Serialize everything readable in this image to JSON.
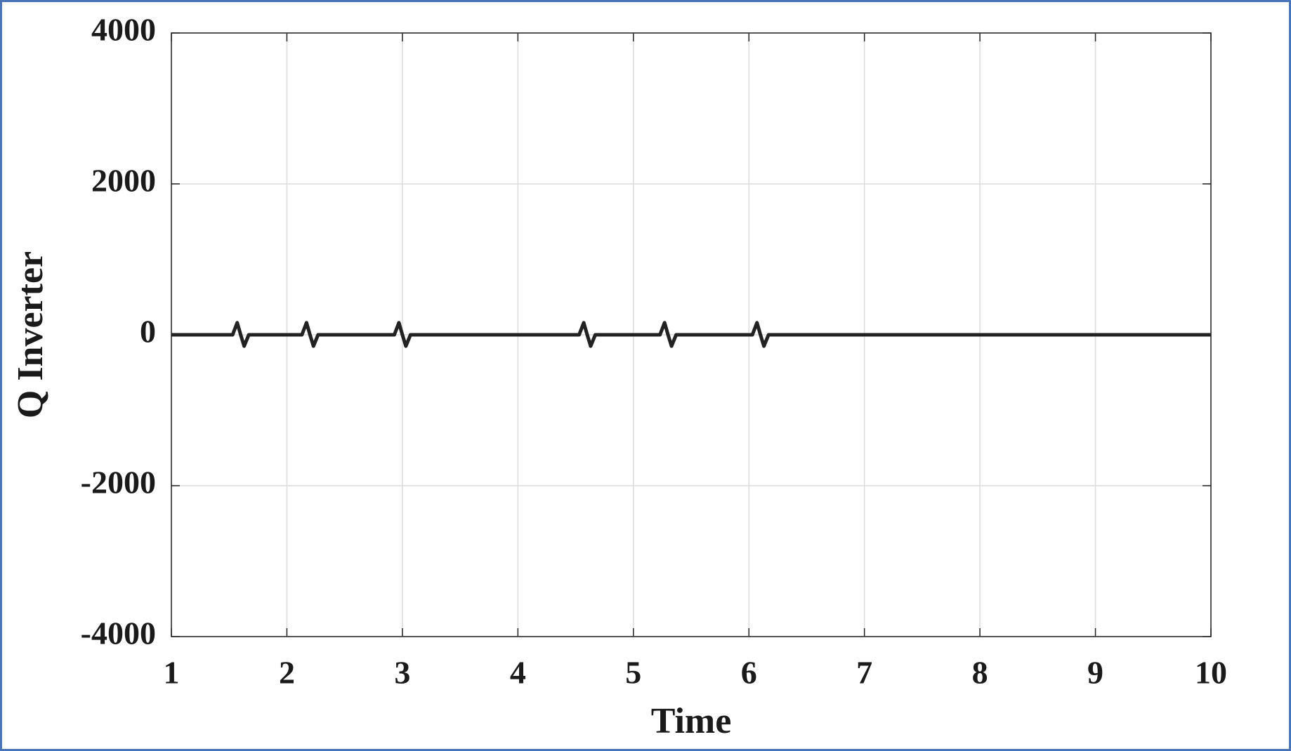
{
  "chart_data": {
    "type": "line",
    "xlabel": "Time",
    "ylabel": "Q Inverter",
    "x": [
      1,
      1.53,
      1.57,
      1.6,
      1.63,
      1.67,
      2.13,
      2.17,
      2.2,
      2.23,
      2.27,
      2.93,
      2.97,
      3.0,
      3.03,
      3.07,
      4.53,
      4.57,
      4.6,
      4.63,
      4.67,
      5.23,
      5.27,
      5.3,
      5.33,
      5.37,
      6.03,
      6.07,
      6.1,
      6.13,
      6.17,
      10
    ],
    "series": [
      {
        "color": "#222222",
        "values": [
          0,
          0,
          160,
          0,
          -150,
          0,
          0,
          160,
          0,
          -150,
          0,
          0,
          160,
          0,
          -150,
          0,
          0,
          160,
          0,
          -150,
          0,
          0,
          160,
          0,
          -150,
          0,
          0,
          160,
          0,
          -150,
          0,
          0
        ]
      }
    ],
    "xlim": [
      1,
      10
    ],
    "xticks": [
      1,
      2,
      3,
      4,
      5,
      6,
      7,
      8,
      9,
      10
    ],
    "ylim": [
      -4000,
      4000
    ],
    "yticks": [
      -4000,
      -2000,
      0,
      2000,
      4000
    ],
    "grid": true
  }
}
